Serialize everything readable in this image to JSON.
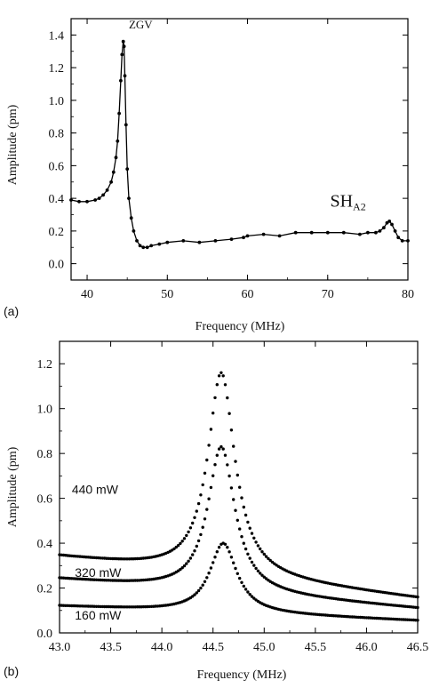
{
  "chart_data": [
    {
      "panel": "(a)",
      "type": "line",
      "xlabel": "Frequency (MHz)",
      "ylabel": "Amplitude (pm)",
      "xlim": [
        38,
        80
      ],
      "ylim": [
        -0.1,
        1.5
      ],
      "xticks": [
        40,
        50,
        60,
        70,
        80
      ],
      "yticks": [
        0.0,
        0.2,
        0.4,
        0.6,
        0.8,
        1.0,
        1.2,
        1.4
      ],
      "ytick_labels": [
        "0.0",
        "0.2",
        "0.4",
        "0.6",
        "0.8",
        "1.0",
        "1.2",
        "1.4"
      ],
      "grid": false,
      "annotations": [
        {
          "text": "ZGV",
          "x": 45.2,
          "y": 1.44
        },
        {
          "text": "SH",
          "subscript": "A2",
          "x": 70.3,
          "y": 0.35
        }
      ],
      "series": [
        {
          "x": [
            38,
            39,
            40,
            41,
            41.5,
            42,
            42.5,
            43,
            43.3,
            43.6,
            43.8,
            44.0,
            44.2,
            44.35,
            44.5,
            44.6,
            44.7,
            44.85,
            45.0,
            45.2,
            45.5,
            45.8,
            46.2,
            46.6,
            47.0,
            47.5,
            48,
            49,
            50,
            52,
            54,
            56,
            58,
            59.5,
            60,
            62,
            64,
            66,
            68,
            70,
            72,
            74,
            75,
            76,
            76.5,
            77,
            77.4,
            77.7,
            78,
            78.4,
            78.8,
            79.3,
            80
          ],
          "values": [
            0.39,
            0.38,
            0.38,
            0.39,
            0.4,
            0.42,
            0.45,
            0.5,
            0.56,
            0.65,
            0.75,
            0.92,
            1.12,
            1.28,
            1.36,
            1.33,
            1.15,
            0.85,
            0.58,
            0.4,
            0.28,
            0.2,
            0.14,
            0.11,
            0.1,
            0.1,
            0.11,
            0.12,
            0.13,
            0.14,
            0.13,
            0.14,
            0.15,
            0.16,
            0.17,
            0.18,
            0.17,
            0.19,
            0.19,
            0.19,
            0.19,
            0.18,
            0.19,
            0.19,
            0.2,
            0.22,
            0.25,
            0.26,
            0.24,
            0.2,
            0.16,
            0.14,
            0.14
          ]
        }
      ]
    },
    {
      "panel": "(b)",
      "type": "scatter",
      "xlabel": "Frequency (MHz)",
      "ylabel": "Amplitude (pm)",
      "xlim": [
        43.0,
        46.5
      ],
      "ylim": [
        0.0,
        1.3
      ],
      "xticks": [
        43.0,
        43.5,
        44.0,
        44.5,
        45.0,
        45.5,
        46.0,
        46.5
      ],
      "xtick_labels": [
        "43.0",
        "43.5",
        "44.0",
        "44.5",
        "45.0",
        "45.5",
        "46.0",
        "46.5"
      ],
      "yticks": [
        0.0,
        0.2,
        0.4,
        0.6,
        0.8,
        1.0,
        1.2
      ],
      "ytick_labels": [
        "0.0",
        "0.2",
        "0.4",
        "0.6",
        "0.8",
        "1.0",
        "1.2"
      ],
      "grid": false,
      "series": [
        {
          "name": "440 mW",
          "x0": 44.58,
          "peak": 1.16,
          "base_left": 0.34,
          "gamma": 0.16,
          "label_x": 43.12,
          "label_y": 0.62
        },
        {
          "name": "320 mW",
          "x0": 44.58,
          "peak": 0.83,
          "base_left": 0.24,
          "gamma": 0.16,
          "label_x": 43.15,
          "label_y": 0.25
        },
        {
          "name": "160 mW",
          "x0": 44.6,
          "peak": 0.4,
          "base_left": 0.12,
          "gamma": 0.16,
          "label_x": 43.15,
          "label_y": 0.06
        }
      ]
    }
  ]
}
